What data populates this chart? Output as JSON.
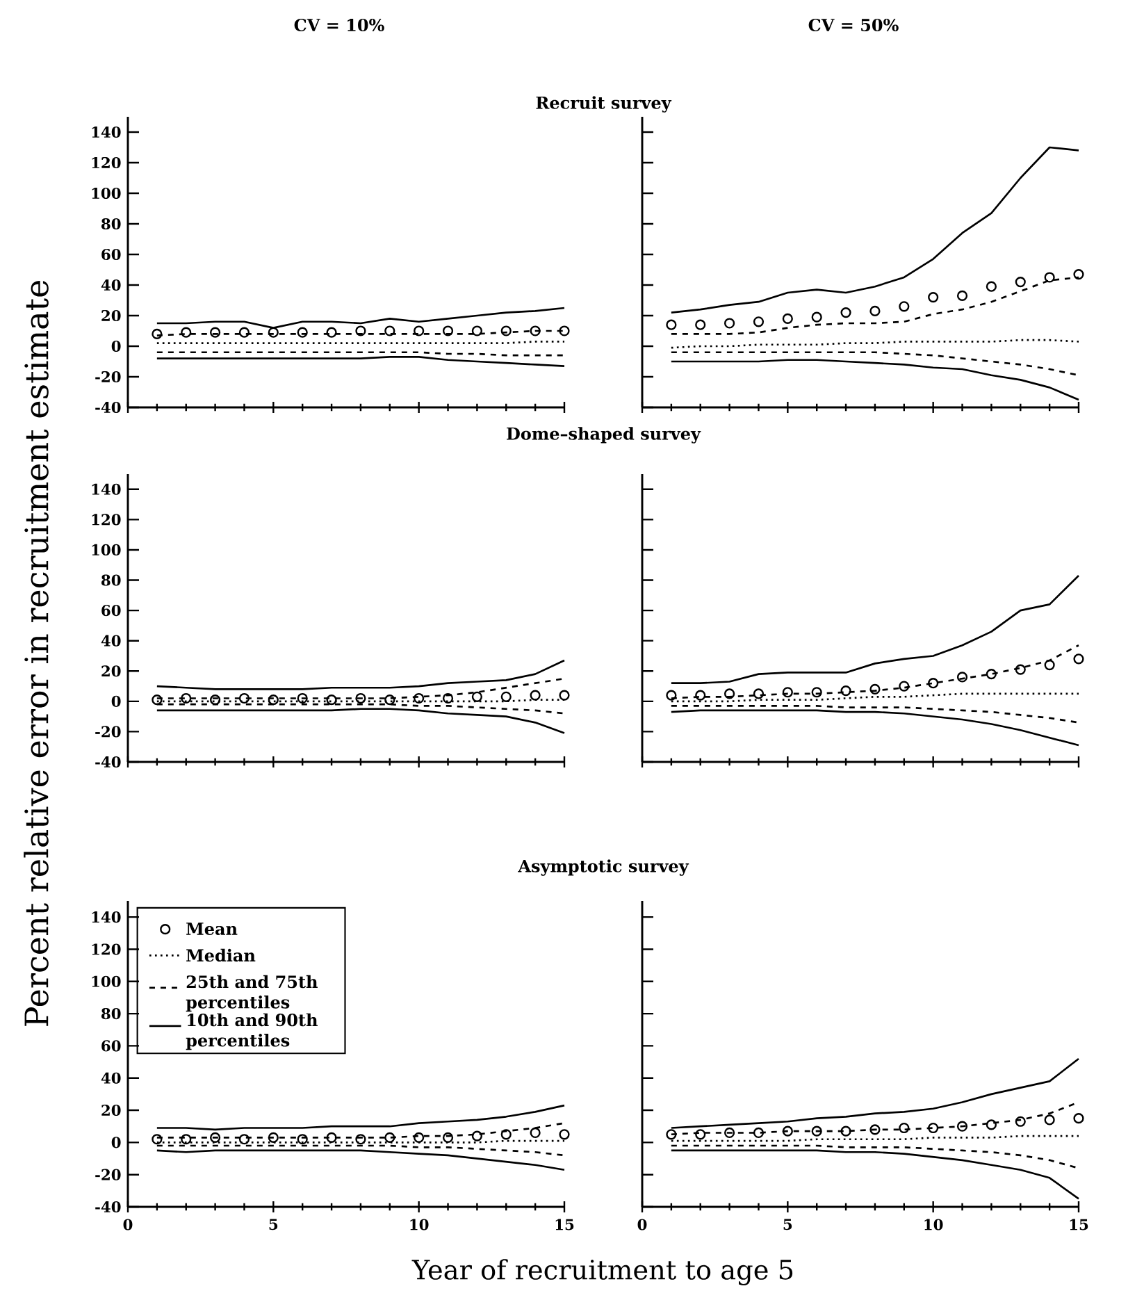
{
  "chart_data": [
    {
      "type": "line",
      "title": "CV = 10%",
      "subtitle": "Recruit survey",
      "x": [
        1,
        2,
        3,
        4,
        5,
        6,
        7,
        8,
        9,
        10,
        11,
        12,
        13,
        14,
        15
      ],
      "xlim": [
        0,
        15
      ],
      "xticks": [
        0,
        5,
        10,
        15
      ],
      "ylim": [
        -40,
        150
      ],
      "yticks": [
        -40,
        -20,
        0,
        20,
        40,
        60,
        80,
        100,
        120,
        140
      ],
      "tick_labels": "y",
      "series": [
        {
          "type": "scatter",
          "marker": "circle",
          "color": "#000000",
          "values": [
            8,
            9,
            9,
            9,
            9,
            9,
            9,
            10,
            10,
            10,
            10,
            10,
            10,
            10,
            10
          ]
        },
        {
          "line_style": "dotted",
          "color": "#000000",
          "values": [
            2,
            2,
            2,
            2,
            2,
            2,
            2,
            2,
            2,
            2,
            2,
            2,
            2,
            3,
            3
          ]
        },
        {
          "line_style": "dashed",
          "color": "#000000",
          "values": [
            -4,
            -4,
            -4,
            -4,
            -4,
            -4,
            -4,
            -4,
            -4,
            -4,
            -5,
            -5,
            -6,
            -6,
            -6
          ]
        },
        {
          "line_style": "dashed",
          "color": "#000000",
          "values": [
            7,
            8,
            8,
            8,
            8,
            8,
            8,
            8,
            8,
            8,
            8,
            8,
            9,
            10,
            10
          ]
        },
        {
          "line_style": "solid",
          "color": "#000000",
          "values": [
            -8,
            -8,
            -8,
            -8,
            -8,
            -8,
            -8,
            -8,
            -7,
            -7,
            -9,
            -10,
            -11,
            -12,
            -13
          ]
        },
        {
          "line_style": "solid",
          "color": "#000000",
          "values": [
            15,
            15,
            16,
            16,
            12,
            16,
            16,
            15,
            18,
            16,
            18,
            20,
            22,
            23,
            25
          ]
        }
      ]
    },
    {
      "type": "line",
      "title": "CV = 50%",
      "x": [
        1,
        2,
        3,
        4,
        5,
        6,
        7,
        8,
        9,
        10,
        11,
        12,
        13,
        14,
        15
      ],
      "xlim": [
        0,
        15
      ],
      "xticks": [
        0,
        5,
        10,
        15
      ],
      "ylim": [
        -40,
        150
      ],
      "yticks": [
        -40,
        -20,
        0,
        20,
        40,
        60,
        80,
        100,
        120,
        140
      ],
      "tick_labels": false,
      "series": [
        {
          "type": "scatter",
          "marker": "circle",
          "color": "#000000",
          "values": [
            14,
            14,
            15,
            16,
            18,
            19,
            22,
            23,
            26,
            32,
            33,
            39,
            42,
            45,
            47
          ]
        },
        {
          "line_style": "dotted",
          "color": "#000000",
          "values": [
            -1,
            0,
            0,
            1,
            1,
            1,
            2,
            2,
            3,
            3,
            3,
            3,
            4,
            4,
            3
          ]
        },
        {
          "line_style": "dashed",
          "color": "#000000",
          "values": [
            -4,
            -4,
            -4,
            -4,
            -4,
            -4,
            -4,
            -4,
            -5,
            -6,
            -8,
            -10,
            -12,
            -15,
            -19
          ]
        },
        {
          "line_style": "dashed",
          "color": "#000000",
          "values": [
            8,
            8,
            8,
            9,
            12,
            14,
            15,
            15,
            16,
            21,
            24,
            29,
            36,
            43,
            45
          ]
        },
        {
          "line_style": "solid",
          "color": "#000000",
          "values": [
            -10,
            -10,
            -10,
            -10,
            -9,
            -9,
            -10,
            -11,
            -12,
            -14,
            -15,
            -19,
            -22,
            -27,
            -35
          ]
        },
        {
          "line_style": "solid",
          "color": "#000000",
          "values": [
            22,
            24,
            27,
            29,
            35,
            37,
            35,
            39,
            45,
            57,
            74,
            87,
            110,
            130,
            128
          ]
        }
      ]
    },
    {
      "type": "line",
      "subtitle": "Dome–shaped survey",
      "ylabel": "Percent relative error in recruitment estimate",
      "x": [
        1,
        2,
        3,
        4,
        5,
        6,
        7,
        8,
        9,
        10,
        11,
        12,
        13,
        14,
        15
      ],
      "xlim": [
        0,
        15
      ],
      "xticks": [
        0,
        5,
        10,
        15
      ],
      "ylim": [
        -40,
        150
      ],
      "yticks": [
        -40,
        -20,
        0,
        20,
        40,
        60,
        80,
        100,
        120,
        140
      ],
      "tick_labels": "y",
      "series": [
        {
          "type": "scatter",
          "marker": "circle",
          "color": "#000000",
          "values": [
            1,
            2,
            1,
            2,
            1,
            2,
            1,
            2,
            1,
            2,
            2,
            3,
            3,
            4,
            4
          ]
        },
        {
          "line_style": "dotted",
          "color": "#000000",
          "values": [
            0,
            0,
            0,
            0,
            0,
            0,
            0,
            0,
            0,
            0,
            0,
            0,
            0,
            1,
            1
          ]
        },
        {
          "line_style": "dashed",
          "color": "#000000",
          "values": [
            -2,
            -2,
            -2,
            -2,
            -2,
            -2,
            -2,
            -2,
            -2,
            -3,
            -3,
            -4,
            -5,
            -6,
            -8
          ]
        },
        {
          "line_style": "dashed",
          "color": "#000000",
          "values": [
            2,
            2,
            2,
            2,
            2,
            2,
            2,
            2,
            2,
            3,
            4,
            6,
            9,
            12,
            15
          ]
        },
        {
          "line_style": "solid",
          "color": "#000000",
          "values": [
            -6,
            -6,
            -6,
            -6,
            -6,
            -6,
            -6,
            -5,
            -5,
            -6,
            -8,
            -9,
            -10,
            -14,
            -21
          ]
        },
        {
          "line_style": "solid",
          "color": "#000000",
          "values": [
            10,
            9,
            8,
            8,
            8,
            8,
            9,
            9,
            9,
            10,
            12,
            13,
            14,
            18,
            27
          ]
        }
      ]
    },
    {
      "type": "line",
      "x": [
        1,
        2,
        3,
        4,
        5,
        6,
        7,
        8,
        9,
        10,
        11,
        12,
        13,
        14,
        15
      ],
      "xlim": [
        0,
        15
      ],
      "xticks": [
        0,
        5,
        10,
        15
      ],
      "ylim": [
        -40,
        150
      ],
      "yticks": [
        -40,
        -20,
        0,
        20,
        40,
        60,
        80,
        100,
        120,
        140
      ],
      "tick_labels": false,
      "series": [
        {
          "type": "scatter",
          "marker": "circle",
          "color": "#000000",
          "values": [
            4,
            4,
            5,
            5,
            6,
            6,
            7,
            8,
            10,
            12,
            16,
            18,
            21,
            24,
            28
          ]
        },
        {
          "line_style": "dotted",
          "color": "#000000",
          "values": [
            0,
            0,
            0,
            1,
            1,
            1,
            2,
            3,
            3,
            4,
            5,
            5,
            5,
            5,
            5
          ]
        },
        {
          "line_style": "dashed",
          "color": "#000000",
          "values": [
            -3,
            -3,
            -3,
            -3,
            -3,
            -3,
            -4,
            -4,
            -4,
            -5,
            -6,
            -7,
            -9,
            -11,
            -14
          ]
        },
        {
          "line_style": "dashed",
          "color": "#000000",
          "values": [
            2,
            3,
            3,
            4,
            5,
            5,
            6,
            7,
            9,
            12,
            15,
            18,
            22,
            27,
            37
          ]
        },
        {
          "line_style": "solid",
          "color": "#000000",
          "values": [
            -7,
            -6,
            -6,
            -6,
            -6,
            -6,
            -7,
            -7,
            -8,
            -10,
            -12,
            -15,
            -19,
            -24,
            -29
          ]
        },
        {
          "line_style": "solid",
          "color": "#000000",
          "values": [
            12,
            12,
            13,
            18,
            19,
            19,
            19,
            25,
            28,
            30,
            37,
            46,
            60,
            64,
            83
          ]
        }
      ]
    },
    {
      "type": "line",
      "subtitle": "Asymptotic survey",
      "xlabel": "Year of recruitment to age  5",
      "legend": "top left",
      "x": [
        1,
        2,
        3,
        4,
        5,
        6,
        7,
        8,
        9,
        10,
        11,
        12,
        13,
        14,
        15
      ],
      "xlim": [
        0,
        15
      ],
      "xticks": [
        0,
        5,
        10,
        15
      ],
      "ylim": [
        -40,
        150
      ],
      "yticks": [
        -40,
        -20,
        0,
        20,
        40,
        60,
        80,
        100,
        120,
        140
      ],
      "series": [
        {
          "name": "Mean",
          "type": "scatter",
          "marker": "circle",
          "color": "#000000",
          "values": [
            2,
            2,
            3,
            2,
            3,
            2,
            3,
            2,
            3,
            3,
            3,
            4,
            5,
            6,
            5
          ]
        },
        {
          "name": "Median",
          "line_style": "dotted",
          "color": "#000000",
          "values": [
            0,
            0,
            0,
            0,
            0,
            0,
            0,
            0,
            0,
            0,
            0,
            0,
            1,
            1,
            1
          ]
        },
        {
          "name": "25th and 75th percentiles",
          "line_style": "dashed",
          "color": "#000000",
          "values": [
            -2,
            -2,
            -2,
            -2,
            -2,
            -2,
            -2,
            -2,
            -2,
            -3,
            -3,
            -4,
            -5,
            -6,
            -8
          ]
        },
        {
          "line_style": "dashed",
          "color": "#000000",
          "values": [
            3,
            3,
            3,
            3,
            3,
            3,
            3,
            3,
            3,
            4,
            4,
            5,
            7,
            9,
            12
          ]
        },
        {
          "name": "10th and 90th percentiles",
          "line_style": "solid",
          "color": "#000000",
          "values": [
            -5,
            -6,
            -5,
            -5,
            -5,
            -5,
            -5,
            -5,
            -6,
            -7,
            -8,
            -10,
            -12,
            -14,
            -17
          ]
        },
        {
          "line_style": "solid",
          "color": "#000000",
          "values": [
            9,
            9,
            8,
            9,
            9,
            9,
            10,
            10,
            10,
            12,
            13,
            14,
            16,
            19,
            23
          ]
        }
      ]
    },
    {
      "type": "line",
      "x": [
        1,
        2,
        3,
        4,
        5,
        6,
        7,
        8,
        9,
        10,
        11,
        12,
        13,
        14,
        15
      ],
      "xlim": [
        0,
        15
      ],
      "xticks": [
        0,
        5,
        10,
        15
      ],
      "ylim": [
        -40,
        150
      ],
      "yticks": [
        -40,
        -20,
        0,
        20,
        40,
        60,
        80,
        100,
        120,
        140
      ],
      "tick_labels": "x",
      "series": [
        {
          "type": "scatter",
          "marker": "circle",
          "color": "#000000",
          "values": [
            5,
            5,
            6,
            6,
            7,
            7,
            7,
            8,
            9,
            9,
            10,
            11,
            13,
            14,
            15
          ]
        },
        {
          "line_style": "dotted",
          "color": "#000000",
          "values": [
            1,
            1,
            1,
            1,
            1,
            2,
            2,
            2,
            2,
            3,
            3,
            3,
            4,
            4,
            4
          ]
        },
        {
          "line_style": "dashed",
          "color": "#000000",
          "values": [
            -2,
            -2,
            -2,
            -2,
            -2,
            -2,
            -3,
            -3,
            -3,
            -4,
            -5,
            -6,
            -8,
            -11,
            -16
          ]
        },
        {
          "line_style": "dashed",
          "color": "#000000",
          "values": [
            5,
            6,
            6,
            6,
            7,
            7,
            7,
            8,
            8,
            9,
            10,
            12,
            14,
            18,
            25
          ]
        },
        {
          "line_style": "solid",
          "color": "#000000",
          "values": [
            -5,
            -5,
            -5,
            -5,
            -5,
            -5,
            -6,
            -6,
            -7,
            -9,
            -11,
            -14,
            -17,
            -22,
            -35
          ]
        },
        {
          "line_style": "solid",
          "color": "#000000",
          "values": [
            9,
            10,
            11,
            12,
            13,
            15,
            16,
            18,
            19,
            21,
            25,
            30,
            34,
            38,
            52
          ]
        }
      ]
    }
  ]
}
